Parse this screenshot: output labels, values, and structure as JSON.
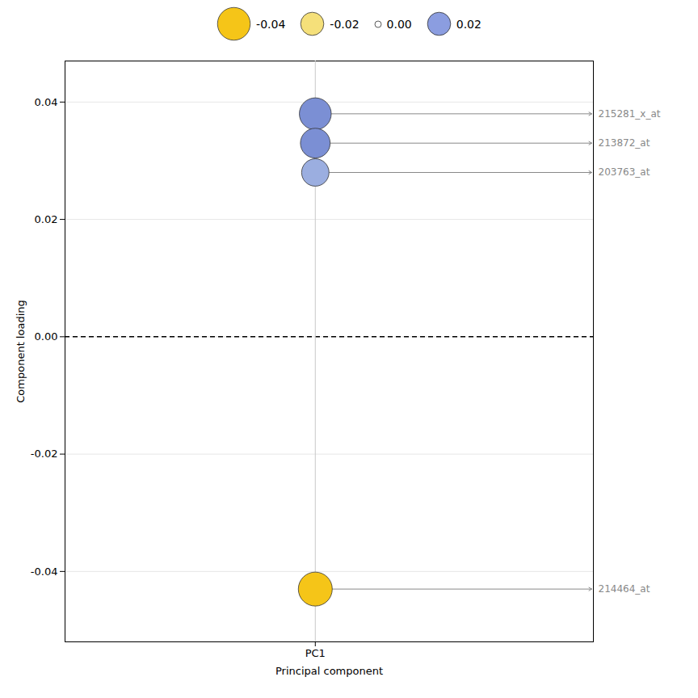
{
  "chart_data": {
    "type": "scatter",
    "xlabel": "Principal component",
    "ylabel": "Component loading",
    "x": [
      1,
      1,
      1,
      1
    ],
    "values": [
      0.038,
      0.033,
      0.028,
      -0.043
    ],
    "labels": [
      "215281_x_at",
      "213872_at",
      "203763_at",
      "214464_at"
    ],
    "colors": [
      "#7b8fd4",
      "#7b8fd4",
      "#9baee0",
      "#f5c518"
    ],
    "sizes": [
      0.038,
      0.033,
      0.028,
      0.043
    ],
    "xlim": [
      0.55,
      1.5
    ],
    "xticks": [
      {
        "value": 1,
        "label": "PC1"
      }
    ],
    "ylim": [
      -0.052,
      0.047
    ],
    "yticks": [
      -0.04,
      -0.02,
      {
        "value": 0,
        "label": "0.00"
      },
      0.02,
      0.04
    ],
    "grid": true,
    "reference_lines": [
      {
        "y": 0,
        "line_style": "dashed"
      },
      {
        "x": 1,
        "line_style": "solid"
      }
    ],
    "legend": "top",
    "size_legend": {
      "values": [
        -0.04,
        -0.02,
        0,
        0.02
      ],
      "value_labels": [
        "-0.04",
        "-0.02",
        "0.00",
        "0.02"
      ],
      "sizes": [
        0.04,
        0.02,
        0,
        0.02
      ],
      "colors": [
        "#f5c518",
        "#f5e07a",
        "#ffffff",
        "#8b9de0"
      ]
    }
  }
}
